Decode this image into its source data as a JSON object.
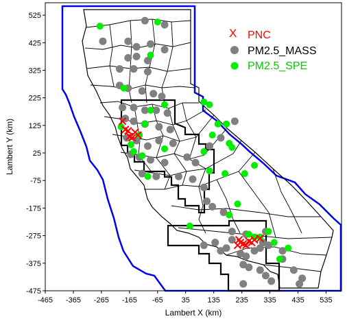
{
  "chart_data": {
    "type": "scatter",
    "xlabel": "Lambert X (km)",
    "ylabel": "Lambert Y (km)",
    "xlim": [
      -465,
      590
    ],
    "ylim": [
      -475,
      570
    ],
    "x_ticks": [
      "-465",
      "-365",
      "-265",
      "-165",
      "-65",
      "35",
      "135",
      "235",
      "335",
      "435",
      "535"
    ],
    "y_ticks": [
      "525",
      "425",
      "325",
      "225",
      "125",
      "25",
      "-75",
      "-175",
      "-275",
      "-375",
      "-475"
    ],
    "legend_placement": "top-right",
    "grid": false,
    "series": [
      {
        "name": "PNC",
        "marker": "x",
        "color": "#ff0000",
        "points": [
          [
            -190,
            140
          ],
          [
            -180,
            110
          ],
          [
            -165,
            85
          ],
          [
            -155,
            80
          ],
          [
            -145,
            100
          ],
          [
            -135,
            90
          ],
          [
            -170,
            105
          ],
          [
            220,
            -310
          ],
          [
            230,
            -300
          ],
          [
            240,
            -305
          ],
          [
            250,
            -310
          ],
          [
            225,
            -290
          ],
          [
            260,
            -295
          ],
          [
            270,
            -300
          ],
          [
            280,
            -290
          ],
          [
            300,
            -285
          ]
        ]
      },
      {
        "name": "PM2.5_MASS",
        "marker": "circle",
        "color": "#808080",
        "points": [
          [
            -110,
            505
          ],
          [
            -40,
            490
          ],
          [
            -260,
            430
          ],
          [
            -170,
            430
          ],
          [
            -140,
            410
          ],
          [
            -90,
            420
          ],
          [
            -40,
            400
          ],
          [
            -170,
            370
          ],
          [
            -140,
            375
          ],
          [
            -100,
            360
          ],
          [
            -200,
            330
          ],
          [
            -150,
            330
          ],
          [
            -100,
            320
          ],
          [
            -200,
            270
          ],
          [
            -170,
            260
          ],
          [
            -120,
            250
          ],
          [
            -80,
            240
          ],
          [
            -50,
            230
          ],
          [
            -190,
            190
          ],
          [
            -150,
            190
          ],
          [
            -110,
            180
          ],
          [
            -70,
            180
          ],
          [
            -30,
            170
          ],
          [
            -180,
            150
          ],
          [
            -150,
            140
          ],
          [
            -110,
            130
          ],
          [
            -60,
            120
          ],
          [
            -20,
            110
          ],
          [
            -175,
            80
          ],
          [
            -140,
            70
          ],
          [
            -100,
            50
          ],
          [
            -60,
            70
          ],
          [
            -10,
            60
          ],
          [
            -160,
            20
          ],
          [
            -130,
            10
          ],
          [
            -90,
            0
          ],
          [
            -40,
            -10
          ],
          [
            40,
            10
          ],
          [
            70,
            -10
          ],
          [
            -120,
            -50
          ],
          [
            -70,
            -60
          ],
          [
            10,
            -60
          ],
          [
            60,
            -70
          ],
          [
            100,
            -100
          ],
          [
            110,
            -150
          ],
          [
            130,
            -170
          ],
          [
            170,
            -190
          ],
          [
            120,
            50
          ],
          [
            160,
            80
          ],
          [
            210,
            140
          ],
          [
            250,
            -270
          ],
          [
            200,
            -290
          ],
          [
            180,
            -320
          ],
          [
            160,
            -330
          ],
          [
            140,
            -300
          ],
          [
            100,
            -310
          ],
          [
            230,
            -340
          ],
          [
            250,
            -350
          ],
          [
            280,
            -330
          ],
          [
            300,
            -320
          ],
          [
            310,
            -300
          ],
          [
            320,
            -260
          ],
          [
            330,
            -310
          ],
          [
            240,
            -380
          ],
          [
            260,
            -390
          ],
          [
            300,
            -400
          ],
          [
            320,
            -420
          ],
          [
            340,
            -440
          ],
          [
            380,
            -360
          ],
          [
            420,
            -400
          ],
          [
            450,
            -430
          ],
          [
            440,
            -450
          ],
          [
            240,
            -450
          ],
          [
            380,
            -330
          ],
          [
            200,
            -260
          ]
        ]
      },
      {
        "name": "PM2.5_SPE",
        "marker": "circle",
        "color": "#00ee00",
        "points": [
          [
            -270,
            485
          ],
          [
            -65,
            500
          ],
          [
            -90,
            380
          ],
          [
            -185,
            260
          ],
          [
            -40,
            200
          ],
          [
            -195,
            120
          ],
          [
            -130,
            90
          ],
          [
            -160,
            55
          ],
          [
            -150,
            30
          ],
          [
            -120,
            15
          ],
          [
            -40,
            40
          ],
          [
            -90,
            180
          ],
          [
            -110,
            130
          ],
          [
            100,
            210
          ],
          [
            120,
            200
          ],
          [
            150,
            130
          ],
          [
            180,
            130
          ],
          [
            130,
            90
          ],
          [
            190,
            60
          ],
          [
            200,
            45
          ],
          [
            100,
            30
          ],
          [
            120,
            -40
          ],
          [
            -100,
            -60
          ],
          [
            175,
            -50
          ],
          [
            245,
            -50
          ],
          [
            280,
            -20
          ],
          [
            220,
            -160
          ],
          [
            50,
            -240
          ],
          [
            190,
            -200
          ],
          [
            260,
            -270
          ],
          [
            280,
            -280
          ],
          [
            300,
            -280
          ],
          [
            330,
            -260
          ],
          [
            350,
            -300
          ],
          [
            370,
            -360
          ],
          [
            400,
            -320
          ]
        ]
      }
    ]
  }
}
